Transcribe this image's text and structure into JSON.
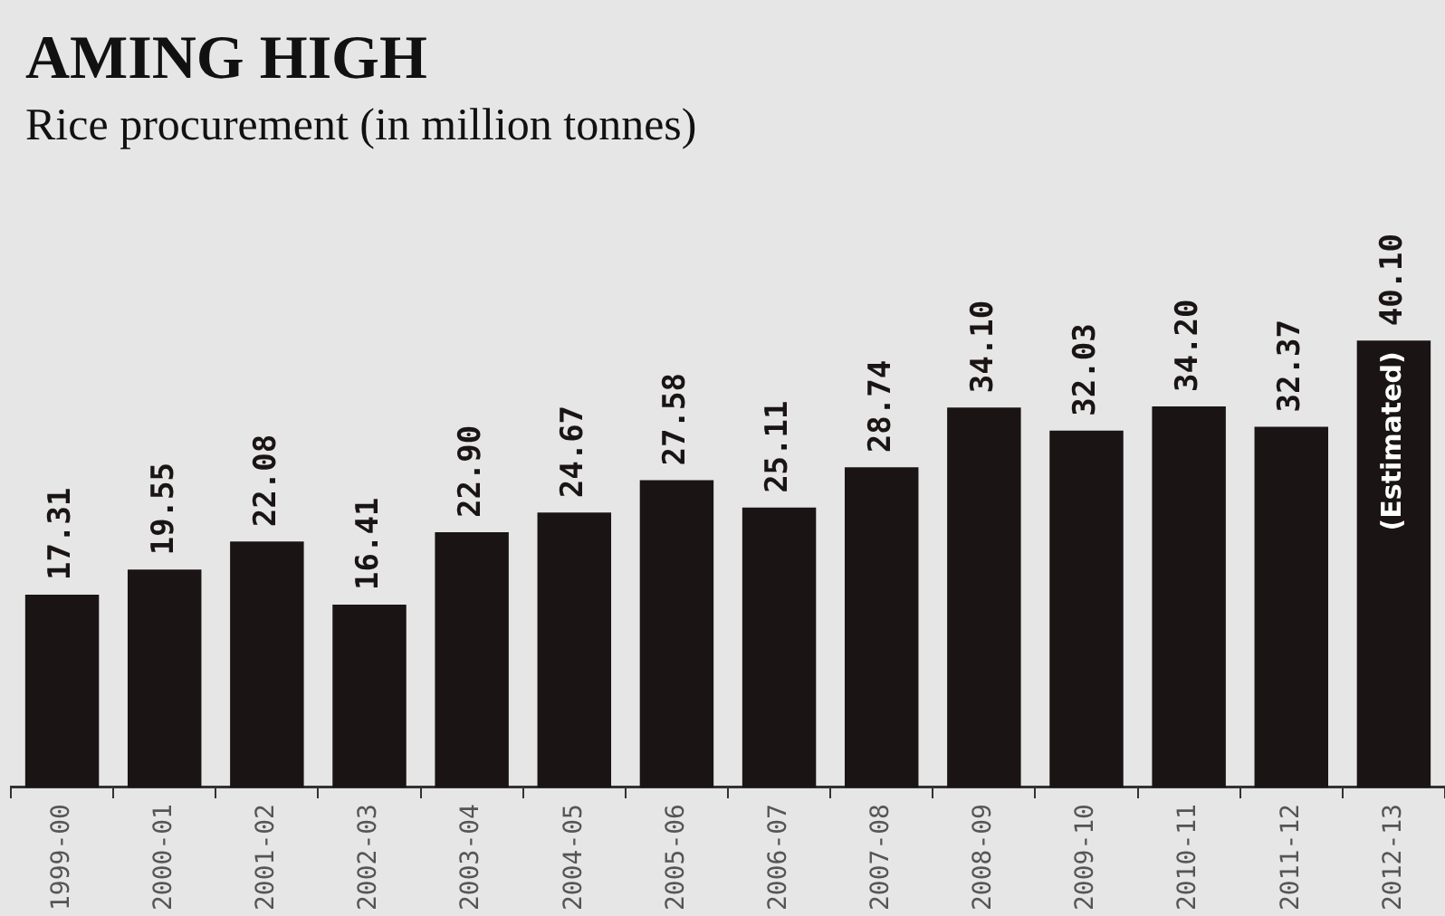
{
  "chart_data": {
    "type": "bar",
    "title": "AMING HIGH",
    "subtitle": "Rice procurement (in million tonnes)",
    "categories": [
      "1999-00",
      "2000-01",
      "2001-02",
      "2002-03",
      "2003-04",
      "2004-05",
      "2005-06",
      "2006-07",
      "2007-08",
      "2008-09",
      "2009-10",
      "2010-11",
      "2011-12",
      "2012-13"
    ],
    "values": [
      17.31,
      19.55,
      22.08,
      16.41,
      22.9,
      24.67,
      27.58,
      25.11,
      28.74,
      34.1,
      32.03,
      34.2,
      32.37,
      40.1
    ],
    "value_labels": [
      "17.31",
      "19.55",
      "22.08",
      "16.41",
      "22.90",
      "24.67",
      "27.58",
      "25.11",
      "28.74",
      "34.10",
      "32.03",
      "34.20",
      "32.37",
      "40.10"
    ],
    "color": "#1a1414",
    "annotations": [
      "(Estimated)"
    ],
    "grid": false,
    "legend": false
  }
}
